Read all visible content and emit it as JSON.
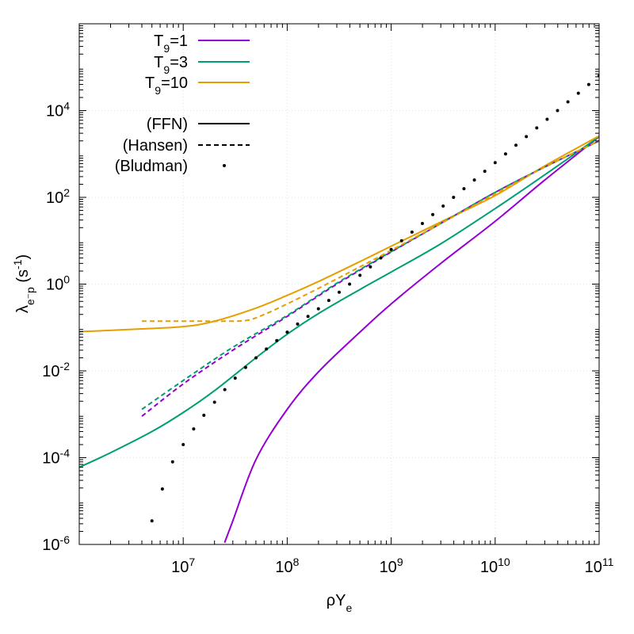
{
  "chart_data": {
    "type": "line",
    "xscale": "log",
    "yscale": "log",
    "xlim": [
      1000000,
      100000000000
    ],
    "ylim": [
      1e-06,
      1000000
    ],
    "xlabel": "ρY",
    "xlabel_sub": "e",
    "ylabel": "λ",
    "ylabel_sub": "e⁻p",
    "ylabel_unit": " (s",
    "ylabel_unit_sup": "-1",
    "ylabel_unit_close": ")",
    "grid": true,
    "x_ticks": [
      {
        "value": 10000000,
        "base": "10",
        "exp": "7"
      },
      {
        "value": 100000000,
        "base": "10",
        "exp": "8"
      },
      {
        "value": 1000000000,
        "base": "10",
        "exp": "9"
      },
      {
        "value": 10000000000,
        "base": "10",
        "exp": "10"
      },
      {
        "value": 100000000000,
        "base": "10",
        "exp": "11"
      }
    ],
    "y_ticks": [
      {
        "value": 1e-06,
        "base": "10",
        "exp": "-6"
      },
      {
        "value": 0.0001,
        "base": "10",
        "exp": "-4"
      },
      {
        "value": 0.01,
        "base": "10",
        "exp": "-2"
      },
      {
        "value": 1,
        "base": "10",
        "exp": "0"
      },
      {
        "value": 100,
        "base": "10",
        "exp": "2"
      },
      {
        "value": 10000,
        "base": "10",
        "exp": "4"
      }
    ],
    "legend": {
      "placement": "top-left",
      "temperature_entries": [
        {
          "label": "T",
          "sub": "9",
          "suffix": "=1",
          "color": "#9400d3"
        },
        {
          "label": "T",
          "sub": "9",
          "suffix": "=3",
          "color": "#009e73"
        },
        {
          "label": "T",
          "sub": "9",
          "suffix": "=10",
          "color": "#e69f00"
        }
      ],
      "model_entries": [
        {
          "label": "(FFN)",
          "style": "solid",
          "color": "#000000"
        },
        {
          "label": "(Hansen)",
          "style": "dashed",
          "color": "#000000"
        },
        {
          "label": "(Bludman)",
          "style": "dots",
          "color": "#000000"
        }
      ]
    },
    "series": [
      {
        "name": "T9=1 (FFN)",
        "color": "#9400d3",
        "style": "solid",
        "x": [
          25000000,
          30000000,
          50000000,
          100000000,
          200000000,
          500000000,
          1000000000,
          3000000000,
          10000000000,
          30000000000,
          100000000000
        ],
        "y": [
          1.1e-06,
          3.5e-06,
          9e-05,
          0.0013,
          0.0095,
          0.078,
          0.35,
          3.0,
          28,
          250,
          2500
        ]
      },
      {
        "name": "T9=3 (FFN)",
        "color": "#009e73",
        "style": "solid",
        "x": [
          1000000,
          2000000,
          5000000,
          10000000,
          20000000,
          50000000,
          100000000,
          200000000,
          500000000,
          1000000000,
          3000000000,
          10000000000,
          30000000000,
          100000000000
        ],
        "y": [
          6e-05,
          0.00013,
          0.0004,
          0.0011,
          0.0035,
          0.02,
          0.07,
          0.21,
          0.75,
          1.9,
          8.5,
          55,
          330,
          2500
        ]
      },
      {
        "name": "T9=10 (FFN)",
        "color": "#e69f00",
        "style": "solid",
        "x": [
          1000000,
          3000000,
          10000000,
          20000000,
          50000000,
          100000000,
          200000000,
          500000000,
          1000000000,
          3000000000,
          10000000000,
          30000000000,
          100000000000
        ],
        "y": [
          0.08,
          0.09,
          0.105,
          0.14,
          0.28,
          0.55,
          1.15,
          3.3,
          7.5,
          27,
          110,
          530,
          2600
        ]
      },
      {
        "name": "T9=1 (Hansen)",
        "color": "#9400d3",
        "style": "dashed",
        "x": [
          4000000,
          10000000,
          30000000,
          100000000,
          300000000,
          1000000000,
          3000000000,
          10000000000,
          30000000000,
          100000000000
        ],
        "y": [
          0.0009,
          0.005,
          0.03,
          0.18,
          1.0,
          5.5,
          25,
          130,
          500,
          2000
        ]
      },
      {
        "name": "T9=3 (Hansen)",
        "color": "#009e73",
        "style": "dashed",
        "x": [
          4000000,
          10000000,
          30000000,
          100000000,
          300000000,
          1000000000,
          3000000000,
          10000000000,
          30000000000,
          100000000000
        ],
        "y": [
          0.0013,
          0.006,
          0.035,
          0.19,
          1.05,
          5.6,
          25,
          130,
          500,
          2000
        ]
      },
      {
        "name": "T9=10 (Hansen)",
        "color": "#e69f00",
        "style": "dashed",
        "x": [
          4000000,
          10000000,
          20000000,
          40000000,
          60000000,
          100000000,
          200000000,
          500000000,
          1000000000,
          3000000000,
          10000000000,
          30000000000,
          100000000000
        ],
        "y": [
          0.14,
          0.14,
          0.14,
          0.145,
          0.2,
          0.35,
          0.8,
          2.5,
          6,
          25,
          120,
          500,
          2000
        ]
      },
      {
        "name": "Bludman",
        "color": "#000000",
        "style": "dots",
        "x": [
          5000000,
          6300000,
          7900000,
          10000000,
          12600000,
          15800000,
          20000000,
          25100000,
          31600000,
          39800000,
          50100000,
          63100000,
          79400000,
          100000000,
          125900000,
          158500000,
          199500000,
          251200000,
          316200000,
          398100000,
          501200000,
          631000000,
          794300000,
          1000000000,
          1259000000,
          1585000000,
          1995000000,
          2512000000,
          3162000000,
          3981000000,
          5012000000,
          6310000000,
          7943000000,
          10000000000,
          12590000000,
          15850000000,
          19950000000,
          25120000000,
          31620000000,
          39810000000,
          50120000000,
          63100000000,
          79430000000,
          100000000000
        ],
        "y": [
          3.5e-06,
          1.9e-05,
          8e-05,
          0.0002,
          0.00046,
          0.00095,
          0.0019,
          0.0037,
          0.0068,
          0.012,
          0.02,
          0.032,
          0.05,
          0.078,
          0.12,
          0.18,
          0.27,
          0.42,
          0.65,
          1.0,
          1.6,
          2.5,
          4.0,
          6.3,
          10,
          15.8,
          25,
          40,
          63,
          100,
          158,
          251,
          398,
          631,
          1000,
          1585,
          2512,
          3981,
          6310,
          10000,
          15850,
          25120,
          39810,
          63100
        ]
      }
    ]
  }
}
